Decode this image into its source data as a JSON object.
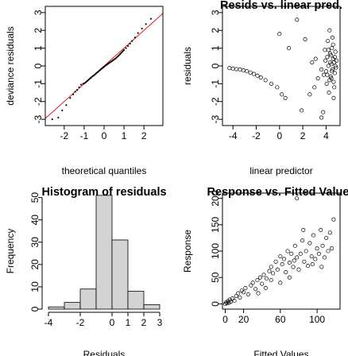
{
  "chart_data": [
    {
      "type": "scatter",
      "title": "",
      "xlabel": "theoretical quantiles",
      "ylabel": "deviance residuals",
      "x_ticks": [
        -2,
        -1,
        0,
        1,
        2
      ],
      "y_ticks": [
        -3,
        -2,
        -1,
        0,
        1,
        2,
        3
      ],
      "xlim": [
        -2.95,
        2.95
      ],
      "ylim": [
        -3.35,
        3.35
      ],
      "reference_line": {
        "color": "#e41a1c",
        "points": [
          [
            -3.2,
            -3.2
          ],
          [
            3.2,
            3.2
          ]
        ]
      },
      "points": [
        [
          -2.6,
          -3.0
        ],
        [
          -2.3,
          -2.9
        ],
        [
          -2.1,
          -2.5
        ],
        [
          -1.9,
          -2.2
        ],
        [
          -1.7,
          -1.8
        ],
        [
          -1.55,
          -1.6
        ],
        [
          -1.45,
          -1.45
        ],
        [
          -1.35,
          -1.35
        ],
        [
          -1.25,
          -1.2
        ],
        [
          -1.15,
          -1.05
        ],
        [
          -1.05,
          -1.0
        ],
        [
          -1.0,
          -0.98
        ],
        [
          -0.95,
          -0.95
        ],
        [
          -0.9,
          -0.9
        ],
        [
          -0.85,
          -0.85
        ],
        [
          -0.8,
          -0.8
        ],
        [
          -0.75,
          -0.75
        ],
        [
          -0.7,
          -0.7
        ],
        [
          -0.65,
          -0.65
        ],
        [
          -0.6,
          -0.6
        ],
        [
          -0.55,
          -0.56
        ],
        [
          -0.5,
          -0.52
        ],
        [
          -0.45,
          -0.47
        ],
        [
          -0.4,
          -0.42
        ],
        [
          -0.35,
          -0.37
        ],
        [
          -0.3,
          -0.33
        ],
        [
          -0.25,
          -0.28
        ],
        [
          -0.2,
          -0.23
        ],
        [
          -0.15,
          -0.18
        ],
        [
          -0.1,
          -0.14
        ],
        [
          -0.05,
          -0.09
        ],
        [
          0.0,
          -0.05
        ],
        [
          0.05,
          0.0
        ],
        [
          0.1,
          0.04
        ],
        [
          0.15,
          0.08
        ],
        [
          0.2,
          0.12
        ],
        [
          0.25,
          0.17
        ],
        [
          0.3,
          0.2
        ],
        [
          0.35,
          0.24
        ],
        [
          0.4,
          0.28
        ],
        [
          0.45,
          0.32
        ],
        [
          0.5,
          0.36
        ],
        [
          0.55,
          0.4
        ],
        [
          0.6,
          0.44
        ],
        [
          0.65,
          0.5
        ],
        [
          0.7,
          0.55
        ],
        [
          0.75,
          0.6
        ],
        [
          0.8,
          0.66
        ],
        [
          0.85,
          0.72
        ],
        [
          0.9,
          0.78
        ],
        [
          0.95,
          0.84
        ],
        [
          1.0,
          0.9
        ],
        [
          1.1,
          1.0
        ],
        [
          1.2,
          1.12
        ],
        [
          1.3,
          1.25
        ],
        [
          1.4,
          1.4
        ],
        [
          1.55,
          1.6
        ],
        [
          1.7,
          1.85
        ],
        [
          1.9,
          2.1
        ],
        [
          2.1,
          2.35
        ],
        [
          2.35,
          2.65
        ]
      ]
    },
    {
      "type": "scatter",
      "title": "Resids vs. linear pred.",
      "xlabel": "linear predictor",
      "ylabel": "residuals",
      "x_ticks": [
        -4,
        -2,
        0,
        2,
        4
      ],
      "y_ticks": [
        -3,
        -2,
        -1,
        0,
        1,
        2,
        3
      ],
      "xlim": [
        -4.9,
        5.2
      ],
      "ylim": [
        -3.35,
        3.35
      ],
      "points": [
        [
          -4.3,
          -0.12
        ],
        [
          -4.0,
          -0.15
        ],
        [
          -3.7,
          -0.18
        ],
        [
          -3.4,
          -0.2
        ],
        [
          -3.1,
          -0.25
        ],
        [
          -2.8,
          -0.3
        ],
        [
          -2.5,
          -0.37
        ],
        [
          -2.2,
          -0.45
        ],
        [
          -1.9,
          -0.55
        ],
        [
          -1.6,
          -0.65
        ],
        [
          -1.2,
          -0.8
        ],
        [
          -0.7,
          -1.0
        ],
        [
          -0.2,
          -1.2
        ],
        [
          0.2,
          -1.6
        ],
        [
          0.5,
          -1.8
        ],
        [
          0.0,
          1.8
        ],
        [
          0.8,
          1.0
        ],
        [
          1.5,
          2.6
        ],
        [
          2.2,
          1.5
        ],
        [
          1.9,
          -2.5
        ],
        [
          2.6,
          -1.6
        ],
        [
          3.0,
          -1.2
        ],
        [
          3.3,
          -0.7
        ],
        [
          2.8,
          0.2
        ],
        [
          3.1,
          0.4
        ],
        [
          3.6,
          -0.2
        ],
        [
          3.6,
          -2.9
        ],
        [
          3.75,
          -2.6
        ],
        [
          3.8,
          -0.5
        ],
        [
          3.9,
          0.9
        ],
        [
          3.95,
          0.3
        ],
        [
          4.0,
          -0.3
        ],
        [
          4.05,
          -1.0
        ],
        [
          4.1,
          0.5
        ],
        [
          4.15,
          1.4
        ],
        [
          4.2,
          0.0
        ],
        [
          4.25,
          -1.5
        ],
        [
          4.3,
          2.0
        ],
        [
          4.35,
          0.7
        ],
        [
          4.4,
          -0.6
        ],
        [
          4.45,
          0.1
        ],
        [
          4.5,
          1.0
        ],
        [
          4.55,
          -0.2
        ],
        [
          4.6,
          0.4
        ],
        [
          4.65,
          -0.9
        ],
        [
          4.7,
          0.2
        ],
        [
          4.75,
          -0.4
        ],
        [
          4.8,
          0.8
        ],
        [
          4.85,
          -0.1
        ],
        [
          4.9,
          0.3
        ],
        [
          4.3,
          -0.8
        ],
        [
          4.4,
          0.6
        ],
        [
          4.5,
          -0.3
        ],
        [
          4.6,
          1.2
        ],
        [
          4.7,
          -1.2
        ],
        [
          4.8,
          0.0
        ],
        [
          4.2,
          0.9
        ],
        [
          4.1,
          -0.5
        ],
        [
          4.55,
          1.6
        ],
        [
          4.65,
          -1.8
        ],
        [
          4.35,
          0.2
        ],
        [
          4.45,
          -0.7
        ],
        [
          4.75,
          0.5
        ]
      ]
    },
    {
      "type": "bar",
      "title": "Histogram of residuals",
      "xlabel": "Residuals",
      "ylabel": "Frequency",
      "x_ticks": [
        -4,
        -2,
        0,
        1,
        2,
        3
      ],
      "y_ticks": [
        0,
        10,
        20,
        30,
        40,
        50
      ],
      "xlim": [
        -4.2,
        3.2
      ],
      "ylim": [
        0,
        52
      ],
      "bins": [
        {
          "x0": -4,
          "x1": -3,
          "count": 1
        },
        {
          "x0": -3,
          "x1": -2,
          "count": 3
        },
        {
          "x0": -2,
          "x1": -1,
          "count": 9
        },
        {
          "x0": -1,
          "x1": 0,
          "count": 51
        },
        {
          "x0": 0,
          "x1": 1,
          "count": 31
        },
        {
          "x0": 1,
          "x1": 2,
          "count": 8
        },
        {
          "x0": 2,
          "x1": 3,
          "count": 2
        }
      ],
      "bar_fill": "#d3d3d3"
    },
    {
      "type": "scatter",
      "title": "Response vs. Fitted Values",
      "xlabel": "Fitted Values",
      "ylabel": "Response",
      "x_ticks": [
        0,
        20,
        60,
        100
      ],
      "y_ticks": [
        0,
        50,
        100,
        150,
        200
      ],
      "xlim": [
        -3,
        125
      ],
      "ylim": [
        -10,
        210
      ],
      "points": [
        [
          0,
          0
        ],
        [
          1,
          3
        ],
        [
          2,
          1
        ],
        [
          3,
          5
        ],
        [
          4,
          2
        ],
        [
          5,
          8
        ],
        [
          6,
          4
        ],
        [
          8,
          10
        ],
        [
          10,
          6
        ],
        [
          12,
          15
        ],
        [
          14,
          20
        ],
        [
          16,
          12
        ],
        [
          18,
          25
        ],
        [
          20,
          22
        ],
        [
          22,
          30
        ],
        [
          25,
          18
        ],
        [
          28,
          35
        ],
        [
          30,
          40
        ],
        [
          33,
          28
        ],
        [
          35,
          45
        ],
        [
          38,
          50
        ],
        [
          40,
          38
        ],
        [
          42,
          55
        ],
        [
          45,
          48
        ],
        [
          48,
          62
        ],
        [
          50,
          70
        ],
        [
          52,
          58
        ],
        [
          55,
          80
        ],
        [
          57,
          65
        ],
        [
          60,
          90
        ],
        [
          62,
          75
        ],
        [
          64,
          85
        ],
        [
          66,
          60
        ],
        [
          68,
          100
        ],
        [
          70,
          78
        ],
        [
          72,
          95
        ],
        [
          74,
          70
        ],
        [
          75,
          82
        ],
        [
          76,
          110
        ],
        [
          78,
          88
        ],
        [
          80,
          65
        ],
        [
          82,
          95
        ],
        [
          84,
          120
        ],
        [
          86,
          80
        ],
        [
          88,
          100
        ],
        [
          90,
          72
        ],
        [
          92,
          115
        ],
        [
          94,
          90
        ],
        [
          96,
          130
        ],
        [
          98,
          85
        ],
        [
          100,
          105
        ],
        [
          102,
          95
        ],
        [
          104,
          140
        ],
        [
          106,
          110
        ],
        [
          108,
          88
        ],
        [
          110,
          125
        ],
        [
          112,
          100
        ],
        [
          114,
          135
        ],
        [
          116,
          105
        ],
        [
          118,
          160
        ],
        [
          85,
          140
        ],
        [
          78,
          200
        ],
        [
          70,
          50
        ],
        [
          95,
          75
        ],
        [
          105,
          70
        ],
        [
          60,
          40
        ],
        [
          50,
          45
        ],
        [
          44,
          30
        ],
        [
          36,
          20
        ]
      ]
    }
  ]
}
